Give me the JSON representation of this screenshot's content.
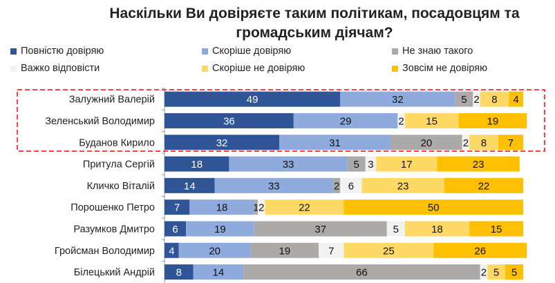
{
  "chart_data": {
    "type": "bar",
    "orientation": "horizontal",
    "stacked": true,
    "title": "Наскільки Ви довіряєте таким політикам, посадовцям та громадським діячам?",
    "title_lines": [
      "Наскільки Ви довіряєте таким політикам, посадовцям та",
      "громадським діячам?"
    ],
    "categories": [
      "Залужний Валерій",
      "Зеленський Володимир",
      "Буданов Кирило",
      "Притула Сергій",
      "Кличко Віталій",
      "Порошенко Петро",
      "Разумков Дмитро",
      "Гройсман Володимир",
      "Білецький Андрій"
    ],
    "series": [
      {
        "name": "Повністю довіряю",
        "color": "#2F5597",
        "label_color": "#ffffff",
        "values": [
          49,
          36,
          32,
          18,
          14,
          7,
          6,
          4,
          8
        ]
      },
      {
        "name": "Скоріше довіряю",
        "color": "#8FAADC",
        "label_color": "#111111",
        "values": [
          32,
          29,
          31,
          33,
          33,
          18,
          19,
          20,
          14
        ]
      },
      {
        "name": "Не знаю такого",
        "color": "#ABAAA8",
        "label_color": "#111111",
        "values": [
          5,
          0,
          20,
          5,
          2,
          1,
          37,
          19,
          66
        ]
      },
      {
        "name": "Важко відповісти",
        "color": "#F2F2F2",
        "label_color": "#111111",
        "values": [
          2,
          2,
          2,
          3,
          6,
          2,
          5,
          7,
          2
        ]
      },
      {
        "name": "Скоріше не довіряю",
        "color": "#FFD966",
        "label_color": "#111111",
        "values": [
          8,
          15,
          8,
          17,
          23,
          22,
          18,
          25,
          5
        ]
      },
      {
        "name": "Зовсім не довіряю",
        "color": "#FFC000",
        "label_color": "#111111",
        "values": [
          4,
          19,
          7,
          23,
          22,
          50,
          15,
          26,
          5
        ]
      }
    ],
    "xlim": [
      0,
      100
    ],
    "legend_position": "top",
    "highlight": {
      "rows": [
        "Залужний Валерій",
        "Зеленський Володимир",
        "Буданов Кирило"
      ],
      "color": "#FF0000",
      "style": "dashed"
    }
  }
}
